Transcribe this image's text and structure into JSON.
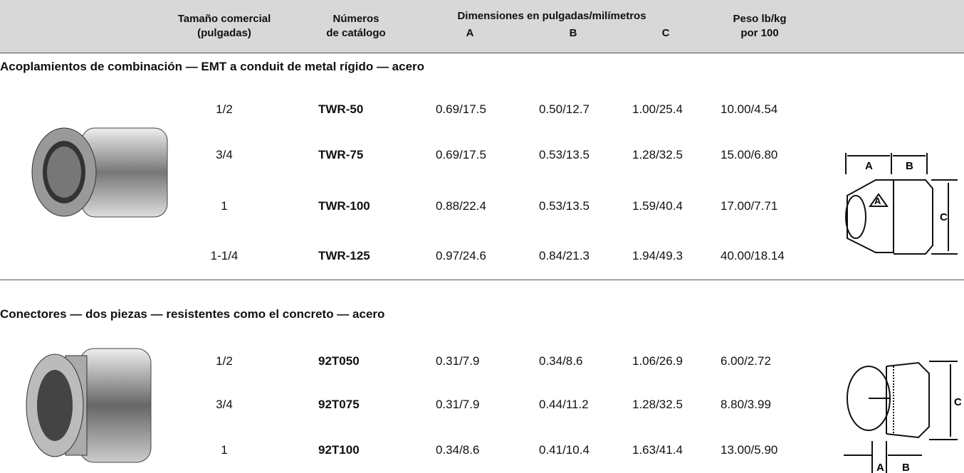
{
  "header": {
    "size": [
      "Tamaño comercial",
      "(pulgadas)"
    ],
    "catalog": [
      "Números",
      "de catálogo"
    ],
    "dimensions": "Dimensiones en pulgadas/milímetros",
    "dim_cols": [
      "A",
      "B",
      "C"
    ],
    "weight": [
      "Peso lb/kg",
      "por 100"
    ]
  },
  "sections": [
    {
      "title": "Acoplamientos de combinación — EMT a conduit de metal rígido — acero",
      "rows": [
        [
          "1/2",
          "TWR-50",
          "0.69/17.5",
          "0.50/12.7",
          "1.00/25.4",
          "10.00/4.54"
        ],
        [
          "3/4",
          "TWR-75",
          "0.69/17.5",
          "0.53/13.5",
          "1.28/32.5",
          "15.00/6.80"
        ],
        [
          "1",
          "TWR-100",
          "0.88/22.4",
          "0.53/13.5",
          "1.59/40.4",
          "17.00/7.71"
        ],
        [
          "1-1/4",
          "TWR-125",
          "0.97/24.6",
          "0.84/21.3",
          "1.94/49.3",
          "40.00/18.14"
        ]
      ],
      "diagram_labels": [
        "A",
        "B",
        "C"
      ],
      "diagram_mark": "A"
    },
    {
      "title": "Conectores — dos piezas — resistentes como el concreto — acero",
      "rows": [
        [
          "1/2",
          "92T050",
          "0.31/7.9",
          "0.34/8.6",
          "1.06/26.9",
          "6.00/2.72"
        ],
        [
          "3/4",
          "92T075",
          "0.31/7.9",
          "0.44/11.2",
          "1.28/32.5",
          "8.80/3.99"
        ],
        [
          "1",
          "92T100",
          "0.34/8.6",
          "0.41/10.4",
          "1.63/41.4",
          "13.00/5.90"
        ]
      ],
      "diagram_labels": [
        "A",
        "B",
        "C"
      ]
    }
  ]
}
